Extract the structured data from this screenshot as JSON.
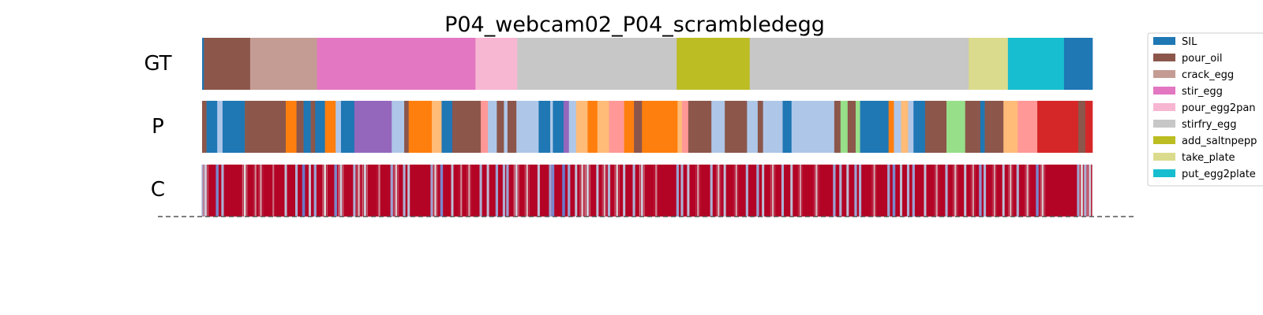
{
  "chart_data": {
    "type": "segmentation",
    "title": "P04_webcam02_P04_scrambledegg",
    "rows": [
      {
        "label": "GT"
      },
      {
        "label": "P"
      },
      {
        "label": "C"
      }
    ],
    "x_range": [
      0,
      1
    ],
    "classes": [
      {
        "name": "SIL",
        "color": "#1f77b4"
      },
      {
        "name": "pour_oil",
        "color": "#8c564b"
      },
      {
        "name": "crack_egg",
        "color": "#c49c94"
      },
      {
        "name": "stir_egg",
        "color": "#e377c2"
      },
      {
        "name": "pour_egg2pan",
        "color": "#f7b6d2"
      },
      {
        "name": "stirfry_egg",
        "color": "#c7c7c7"
      },
      {
        "name": "add_saltnpepper",
        "color": "#bcbd22"
      },
      {
        "name": "take_plate",
        "color": "#dbdb8d"
      },
      {
        "name": "put_egg2plate",
        "color": "#17becf"
      }
    ],
    "extra_colors": {
      "orange": "#ff7f0e",
      "light_orange": "#ffbb78",
      "light_blue": "#aec7e8",
      "purple": "#9467bd",
      "pink_salmon": "#ff9896",
      "light_green": "#98df8a",
      "red": "#d62728"
    },
    "gt_segments": [
      {
        "start": 0.0,
        "end": 0.002,
        "color": "#1f77b4"
      },
      {
        "start": 0.002,
        "end": 0.054,
        "color": "#8c564b"
      },
      {
        "start": 0.054,
        "end": 0.129,
        "color": "#c49c94"
      },
      {
        "start": 0.129,
        "end": 0.307,
        "color": "#e377c2"
      },
      {
        "start": 0.307,
        "end": 0.354,
        "color": "#f7b6d2"
      },
      {
        "start": 0.354,
        "end": 0.533,
        "color": "#c7c7c7"
      },
      {
        "start": 0.533,
        "end": 0.615,
        "color": "#bcbd22"
      },
      {
        "start": 0.615,
        "end": 0.861,
        "color": "#c7c7c7"
      },
      {
        "start": 0.861,
        "end": 0.905,
        "color": "#dbdb8d"
      },
      {
        "start": 0.905,
        "end": 0.968,
        "color": "#17becf"
      },
      {
        "start": 0.968,
        "end": 1.0,
        "color": "#1f77b4"
      }
    ],
    "p_segments": [
      {
        "start": 0.0,
        "end": 0.005,
        "color": "#8c564b"
      },
      {
        "start": 0.005,
        "end": 0.017,
        "color": "#1f77b4"
      },
      {
        "start": 0.017,
        "end": 0.023,
        "color": "#aec7e8"
      },
      {
        "start": 0.023,
        "end": 0.048,
        "color": "#1f77b4"
      },
      {
        "start": 0.048,
        "end": 0.094,
        "color": "#8c564b"
      },
      {
        "start": 0.094,
        "end": 0.106,
        "color": "#ff7f0e"
      },
      {
        "start": 0.106,
        "end": 0.114,
        "color": "#8c564b"
      },
      {
        "start": 0.114,
        "end": 0.122,
        "color": "#1f77b4"
      },
      {
        "start": 0.122,
        "end": 0.127,
        "color": "#8c564b"
      },
      {
        "start": 0.127,
        "end": 0.138,
        "color": "#1f77b4"
      },
      {
        "start": 0.138,
        "end": 0.15,
        "color": "#ff7f0e"
      },
      {
        "start": 0.15,
        "end": 0.156,
        "color": "#aec7e8"
      },
      {
        "start": 0.156,
        "end": 0.171,
        "color": "#1f77b4"
      },
      {
        "start": 0.171,
        "end": 0.213,
        "color": "#9467bd"
      },
      {
        "start": 0.213,
        "end": 0.227,
        "color": "#aec7e8"
      },
      {
        "start": 0.227,
        "end": 0.232,
        "color": "#8c564b"
      },
      {
        "start": 0.232,
        "end": 0.258,
        "color": "#ff7f0e"
      },
      {
        "start": 0.258,
        "end": 0.269,
        "color": "#ffbb78"
      },
      {
        "start": 0.269,
        "end": 0.281,
        "color": "#1f77b4"
      },
      {
        "start": 0.281,
        "end": 0.313,
        "color": "#8c564b"
      },
      {
        "start": 0.313,
        "end": 0.321,
        "color": "#ff9896"
      },
      {
        "start": 0.321,
        "end": 0.331,
        "color": "#aec7e8"
      },
      {
        "start": 0.331,
        "end": 0.339,
        "color": "#8c564b"
      },
      {
        "start": 0.339,
        "end": 0.343,
        "color": "#aec7e8"
      },
      {
        "start": 0.343,
        "end": 0.353,
        "color": "#8c564b"
      },
      {
        "start": 0.353,
        "end": 0.378,
        "color": "#aec7e8"
      },
      {
        "start": 0.378,
        "end": 0.391,
        "color": "#1f77b4"
      },
      {
        "start": 0.391,
        "end": 0.394,
        "color": "#aec7e8"
      },
      {
        "start": 0.394,
        "end": 0.406,
        "color": "#1f77b4"
      },
      {
        "start": 0.406,
        "end": 0.412,
        "color": "#9467bd"
      },
      {
        "start": 0.412,
        "end": 0.42,
        "color": "#aec7e8"
      },
      {
        "start": 0.42,
        "end": 0.433,
        "color": "#ffbb78"
      },
      {
        "start": 0.433,
        "end": 0.444,
        "color": "#ff7f0e"
      },
      {
        "start": 0.444,
        "end": 0.457,
        "color": "#ffbb78"
      },
      {
        "start": 0.457,
        "end": 0.474,
        "color": "#ff9896"
      },
      {
        "start": 0.474,
        "end": 0.485,
        "color": "#ff7f0e"
      },
      {
        "start": 0.485,
        "end": 0.494,
        "color": "#8c564b"
      },
      {
        "start": 0.494,
        "end": 0.534,
        "color": "#ff7f0e"
      },
      {
        "start": 0.534,
        "end": 0.539,
        "color": "#ffbb78"
      },
      {
        "start": 0.539,
        "end": 0.546,
        "color": "#ff9896"
      },
      {
        "start": 0.546,
        "end": 0.572,
        "color": "#8c564b"
      },
      {
        "start": 0.572,
        "end": 0.587,
        "color": "#aec7e8"
      },
      {
        "start": 0.587,
        "end": 0.612,
        "color": "#8c564b"
      },
      {
        "start": 0.612,
        "end": 0.624,
        "color": "#aec7e8"
      },
      {
        "start": 0.624,
        "end": 0.63,
        "color": "#8c564b"
      },
      {
        "start": 0.63,
        "end": 0.652,
        "color": "#aec7e8"
      },
      {
        "start": 0.652,
        "end": 0.662,
        "color": "#1f77b4"
      },
      {
        "start": 0.662,
        "end": 0.71,
        "color": "#aec7e8"
      },
      {
        "start": 0.71,
        "end": 0.717,
        "color": "#8c564b"
      },
      {
        "start": 0.717,
        "end": 0.725,
        "color": "#98df8a"
      },
      {
        "start": 0.725,
        "end": 0.734,
        "color": "#8c564b"
      },
      {
        "start": 0.734,
        "end": 0.739,
        "color": "#98df8a"
      },
      {
        "start": 0.739,
        "end": 0.771,
        "color": "#1f77b4"
      },
      {
        "start": 0.771,
        "end": 0.777,
        "color": "#ff7f0e"
      },
      {
        "start": 0.777,
        "end": 0.785,
        "color": "#aec7e8"
      },
      {
        "start": 0.785,
        "end": 0.793,
        "color": "#ffbb78"
      },
      {
        "start": 0.793,
        "end": 0.799,
        "color": "#aec7e8"
      },
      {
        "start": 0.799,
        "end": 0.812,
        "color": "#1f77b4"
      },
      {
        "start": 0.812,
        "end": 0.836,
        "color": "#8c564b"
      },
      {
        "start": 0.836,
        "end": 0.857,
        "color": "#98df8a"
      },
      {
        "start": 0.857,
        "end": 0.874,
        "color": "#8c564b"
      },
      {
        "start": 0.874,
        "end": 0.879,
        "color": "#1f77b4"
      },
      {
        "start": 0.879,
        "end": 0.9,
        "color": "#8c564b"
      },
      {
        "start": 0.9,
        "end": 0.916,
        "color": "#ffbb78"
      },
      {
        "start": 0.916,
        "end": 0.938,
        "color": "#ff9896"
      },
      {
        "start": 0.938,
        "end": 0.984,
        "color": "#d62728"
      },
      {
        "start": 0.984,
        "end": 0.992,
        "color": "#8c564b"
      },
      {
        "start": 0.992,
        "end": 1.0,
        "color": "#d62728"
      }
    ],
    "confidence": {
      "colormap": "coolwarm",
      "base_color": "#b40426",
      "low_color": "#3b4cc0",
      "mid_color": "#dddcdc",
      "dips": [
        {
          "x": 0.001,
          "level": 0.3
        },
        {
          "x": 0.004,
          "level": 0.45
        },
        {
          "x": 0.017,
          "level": 0.2
        },
        {
          "x": 0.023,
          "level": 0.35
        },
        {
          "x": 0.048,
          "level": 0.5
        },
        {
          "x": 0.06,
          "level": 0.7
        },
        {
          "x": 0.066,
          "level": 0.65
        },
        {
          "x": 0.08,
          "level": 0.75
        },
        {
          "x": 0.094,
          "level": 0.4
        },
        {
          "x": 0.106,
          "level": 0.35
        },
        {
          "x": 0.114,
          "level": 0.15
        },
        {
          "x": 0.121,
          "level": 0.4
        },
        {
          "x": 0.127,
          "level": 0.3
        },
        {
          "x": 0.138,
          "level": 0.5
        },
        {
          "x": 0.15,
          "level": 0.2
        },
        {
          "x": 0.156,
          "level": 0.45
        },
        {
          "x": 0.171,
          "level": 0.35
        },
        {
          "x": 0.176,
          "level": 0.6
        },
        {
          "x": 0.183,
          "level": 0.45
        },
        {
          "x": 0.199,
          "level": 0.7
        },
        {
          "x": 0.213,
          "level": 0.3
        },
        {
          "x": 0.218,
          "level": 0.55
        },
        {
          "x": 0.227,
          "level": 0.35
        },
        {
          "x": 0.232,
          "level": 0.4
        },
        {
          "x": 0.258,
          "level": 0.3
        },
        {
          "x": 0.262,
          "level": 0.55
        },
        {
          "x": 0.269,
          "level": 0.2
        },
        {
          "x": 0.281,
          "level": 0.4
        },
        {
          "x": 0.291,
          "level": 0.7
        },
        {
          "x": 0.3,
          "level": 0.65
        },
        {
          "x": 0.313,
          "level": 0.35
        },
        {
          "x": 0.321,
          "level": 0.4
        },
        {
          "x": 0.331,
          "level": 0.3
        },
        {
          "x": 0.339,
          "level": 0.35
        },
        {
          "x": 0.343,
          "level": 0.3
        },
        {
          "x": 0.353,
          "level": 0.45
        },
        {
          "x": 0.365,
          "level": 0.6
        },
        {
          "x": 0.378,
          "level": 0.4
        },
        {
          "x": 0.391,
          "level": 0.3
        },
        {
          "x": 0.394,
          "level": 0.2
        },
        {
          "x": 0.406,
          "level": 0.15
        },
        {
          "x": 0.412,
          "level": 0.3
        },
        {
          "x": 0.42,
          "level": 0.4
        },
        {
          "x": 0.427,
          "level": 0.55
        },
        {
          "x": 0.433,
          "level": 0.45
        },
        {
          "x": 0.444,
          "level": 0.4
        },
        {
          "x": 0.452,
          "level": 0.6
        },
        {
          "x": 0.457,
          "level": 0.35
        },
        {
          "x": 0.466,
          "level": 0.55
        },
        {
          "x": 0.474,
          "level": 0.4
        },
        {
          "x": 0.485,
          "level": 0.35
        },
        {
          "x": 0.494,
          "level": 0.45
        },
        {
          "x": 0.51,
          "level": 0.7
        },
        {
          "x": 0.534,
          "level": 0.3
        },
        {
          "x": 0.539,
          "level": 0.35
        },
        {
          "x": 0.546,
          "level": 0.4
        },
        {
          "x": 0.557,
          "level": 0.65
        },
        {
          "x": 0.572,
          "level": 0.35
        },
        {
          "x": 0.58,
          "level": 0.6
        },
        {
          "x": 0.587,
          "level": 0.4
        },
        {
          "x": 0.6,
          "level": 0.65
        },
        {
          "x": 0.612,
          "level": 0.35
        },
        {
          "x": 0.624,
          "level": 0.3
        },
        {
          "x": 0.63,
          "level": 0.4
        },
        {
          "x": 0.641,
          "level": 0.6
        },
        {
          "x": 0.652,
          "level": 0.35
        },
        {
          "x": 0.662,
          "level": 0.4
        },
        {
          "x": 0.672,
          "level": 0.65
        },
        {
          "x": 0.69,
          "level": 0.6
        },
        {
          "x": 0.71,
          "level": 0.3
        },
        {
          "x": 0.717,
          "level": 0.35
        },
        {
          "x": 0.725,
          "level": 0.4
        },
        {
          "x": 0.734,
          "level": 0.3
        },
        {
          "x": 0.739,
          "level": 0.35
        },
        {
          "x": 0.755,
          "level": 0.65
        },
        {
          "x": 0.771,
          "level": 0.3
        },
        {
          "x": 0.777,
          "level": 0.2
        },
        {
          "x": 0.785,
          "level": 0.4
        },
        {
          "x": 0.793,
          "level": 0.35
        },
        {
          "x": 0.799,
          "level": 0.3
        },
        {
          "x": 0.812,
          "level": 0.4
        },
        {
          "x": 0.825,
          "level": 0.65
        },
        {
          "x": 0.836,
          "level": 0.35
        },
        {
          "x": 0.846,
          "level": 0.6
        },
        {
          "x": 0.857,
          "level": 0.4
        },
        {
          "x": 0.866,
          "level": 0.65
        },
        {
          "x": 0.874,
          "level": 0.25
        },
        {
          "x": 0.879,
          "level": 0.35
        },
        {
          "x": 0.89,
          "level": 0.65
        },
        {
          "x": 0.9,
          "level": 0.4
        },
        {
          "x": 0.908,
          "level": 0.6
        },
        {
          "x": 0.916,
          "level": 0.35
        },
        {
          "x": 0.927,
          "level": 0.6
        },
        {
          "x": 0.938,
          "level": 0.2
        },
        {
          "x": 0.944,
          "level": 0.55
        },
        {
          "x": 0.984,
          "level": 0.3
        },
        {
          "x": 0.988,
          "level": 0.5
        },
        {
          "x": 0.992,
          "level": 0.35
        },
        {
          "x": 0.997,
          "level": 0.45
        }
      ]
    },
    "legend": {
      "position": "right",
      "entries": [
        "SIL",
        "pour_oil",
        "crack_egg",
        "stir_egg",
        "pour_egg2pan",
        "stirfry_egg",
        "add_saltnpepp",
        "take_plate",
        "put_egg2plate"
      ]
    },
    "baseline": {
      "style": "dashed",
      "color": "#555555"
    }
  }
}
